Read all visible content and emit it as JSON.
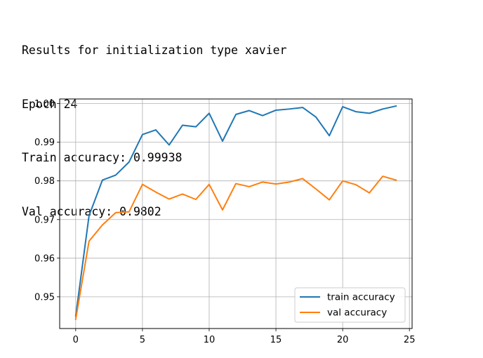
{
  "output": {
    "lines": [
      "Results for initialization type xavier",
      "Epoch 24",
      "Train accuracy: 0.99938",
      "Val accuracy: 0.9802"
    ]
  },
  "chart_data": {
    "type": "line",
    "title": "",
    "xlabel": "",
    "ylabel": "",
    "xlim": [
      -1.2,
      25.2
    ],
    "ylim": [
      0.9418,
      1.0012
    ],
    "grid": true,
    "legend_position": "lower-right",
    "x_ticks": [
      0,
      5,
      10,
      15,
      20,
      25
    ],
    "x_tick_labels": [
      "0",
      "5",
      "10",
      "15",
      "20",
      "25"
    ],
    "y_ticks": [
      0.95,
      0.96,
      0.97,
      0.98,
      0.99,
      1.0
    ],
    "y_tick_labels": [
      "0.95",
      "0.96",
      "0.97",
      "0.98",
      "0.99",
      "1.00"
    ],
    "x": [
      0,
      1,
      2,
      3,
      4,
      5,
      6,
      7,
      8,
      9,
      10,
      11,
      12,
      13,
      14,
      15,
      16,
      17,
      18,
      19,
      20,
      21,
      22,
      23,
      24
    ],
    "series": [
      {
        "name": "train accuracy",
        "color": "#1f77b4",
        "values": [
          0.945,
          0.971,
          0.9802,
          0.9815,
          0.9849,
          0.992,
          0.9932,
          0.9893,
          0.9944,
          0.994,
          0.9975,
          0.9903,
          0.9972,
          0.9982,
          0.9969,
          0.9983,
          0.9986,
          0.999,
          0.9965,
          0.9917,
          0.9992,
          0.9979,
          0.9975,
          0.9986,
          0.99938
        ]
      },
      {
        "name": "val accuracy",
        "color": "#ff7f0e",
        "values": [
          0.9442,
          0.9644,
          0.9686,
          0.9718,
          0.972,
          0.9791,
          0.9771,
          0.9753,
          0.9766,
          0.9752,
          0.9791,
          0.9725,
          0.9793,
          0.9785,
          0.9797,
          0.9792,
          0.9797,
          0.9806,
          0.9779,
          0.9751,
          0.98,
          0.979,
          0.9769,
          0.9812,
          0.9802
        ]
      }
    ]
  }
}
